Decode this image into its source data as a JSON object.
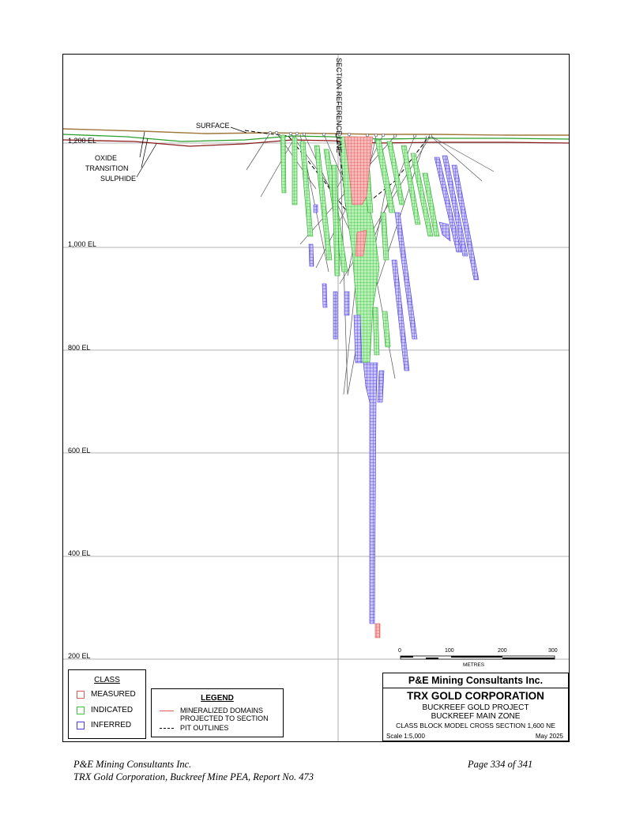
{
  "figure": {
    "elevation_labels": [
      "1,200 EL",
      "1,000 EL",
      "800 EL",
      "600 EL",
      "400 EL",
      "200 EL"
    ],
    "section_reference_label": "SECTION REFERENCE LINE",
    "surface_label": "SURFACE",
    "weathering_labels": [
      "OXIDE",
      "TRANSITION",
      "SULPHIDE"
    ]
  },
  "class_legend": {
    "title": "CLASS",
    "items": [
      {
        "label": "MEASURED",
        "color": "#e05a5a"
      },
      {
        "label": "INDICATED",
        "color": "#3cc43c"
      },
      {
        "label": "INFERRED",
        "color": "#4a3ce0"
      }
    ]
  },
  "line_legend": {
    "title": "LEGEND",
    "items": [
      {
        "label": "MINERALIZED DOMAINS PROJECTED TO SECTION",
        "line_1": "MINERALIZED DOMAINS",
        "line_2": "PROJECTED TO SECTION",
        "color": "#e05a5a",
        "style": "solid"
      },
      {
        "label": "PIT OUTLINES",
        "color": "#000000",
        "style": "dashed"
      }
    ]
  },
  "scale_bar": {
    "ticks": [
      "0",
      "100",
      "200",
      "300"
    ],
    "unit": "METRES"
  },
  "title_block": {
    "company": "P&E Mining Consultants Inc.",
    "client": "TRX GOLD CORPORATION",
    "project": "BUCKREEF GOLD PROJECT",
    "zone": "BUCKREEF MAIN ZONE",
    "section": "CLASS BLOCK MODEL CROSS SECTION 1,600 NE",
    "scale": "Scale 1:5,000",
    "date": "May 2025"
  },
  "footer": {
    "left_line_1": "P&E Mining Consultants Inc.",
    "left_line_2": "TRX Gold Corporation, Buckreef Mine PEA, Report No. 473",
    "right": "Page 334 of 341"
  },
  "colors": {
    "measured": "#e05a5a",
    "indicated": "#3cc43c",
    "inferred": "#4a3ce0",
    "surface": "#a0783c",
    "oxide": "#2aa02a",
    "transition": "#8b1a1a"
  }
}
